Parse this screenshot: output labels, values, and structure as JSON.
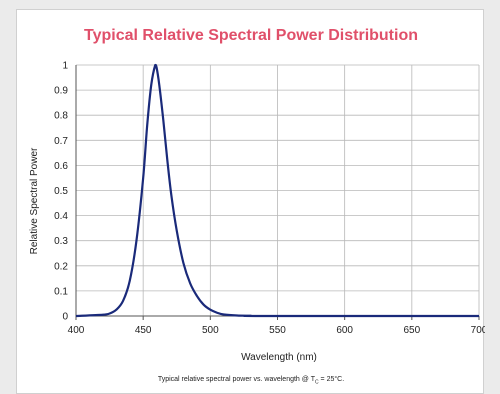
{
  "chart_data": {
    "type": "line",
    "title": "Typical Relative Spectral Power Distribution",
    "xlabel": "Wavelength (nm)",
    "ylabel": "Relative Spectral Power",
    "xlim": [
      400,
      700
    ],
    "ylim": [
      0,
      1
    ],
    "x_ticks": [
      "400",
      "450",
      "500",
      "550",
      "600",
      "650",
      "700"
    ],
    "y_ticks": [
      "0",
      "0.1",
      "0.2",
      "0.3",
      "0.4",
      "0.5",
      "0.6",
      "0.7",
      "0.8",
      "0.9",
      "1"
    ],
    "grid": true,
    "colors": {
      "title": "#e0506a",
      "line": "#1a2a7a",
      "grid": "#b8b8b8",
      "axis": "#555555"
    },
    "series": [
      {
        "x": [
          400,
          420,
          425,
          430,
          435,
          440,
          445,
          450,
          453,
          456,
          459,
          460,
          462,
          465,
          468,
          471,
          475,
          480,
          485,
          490,
          495,
          500,
          505,
          510,
          520,
          530,
          540,
          700
        ],
        "y": [
          0,
          0.005,
          0.01,
          0.025,
          0.06,
          0.14,
          0.3,
          0.55,
          0.76,
          0.92,
          1.0,
          0.99,
          0.92,
          0.78,
          0.62,
          0.48,
          0.34,
          0.21,
          0.13,
          0.08,
          0.045,
          0.025,
          0.013,
          0.006,
          0.002,
          0.001,
          0,
          0
        ]
      }
    ]
  },
  "caption": {
    "prefix": "Typical relative spectral power vs. wavelength @ T",
    "sub": "C",
    "suffix": " = 25°C."
  }
}
